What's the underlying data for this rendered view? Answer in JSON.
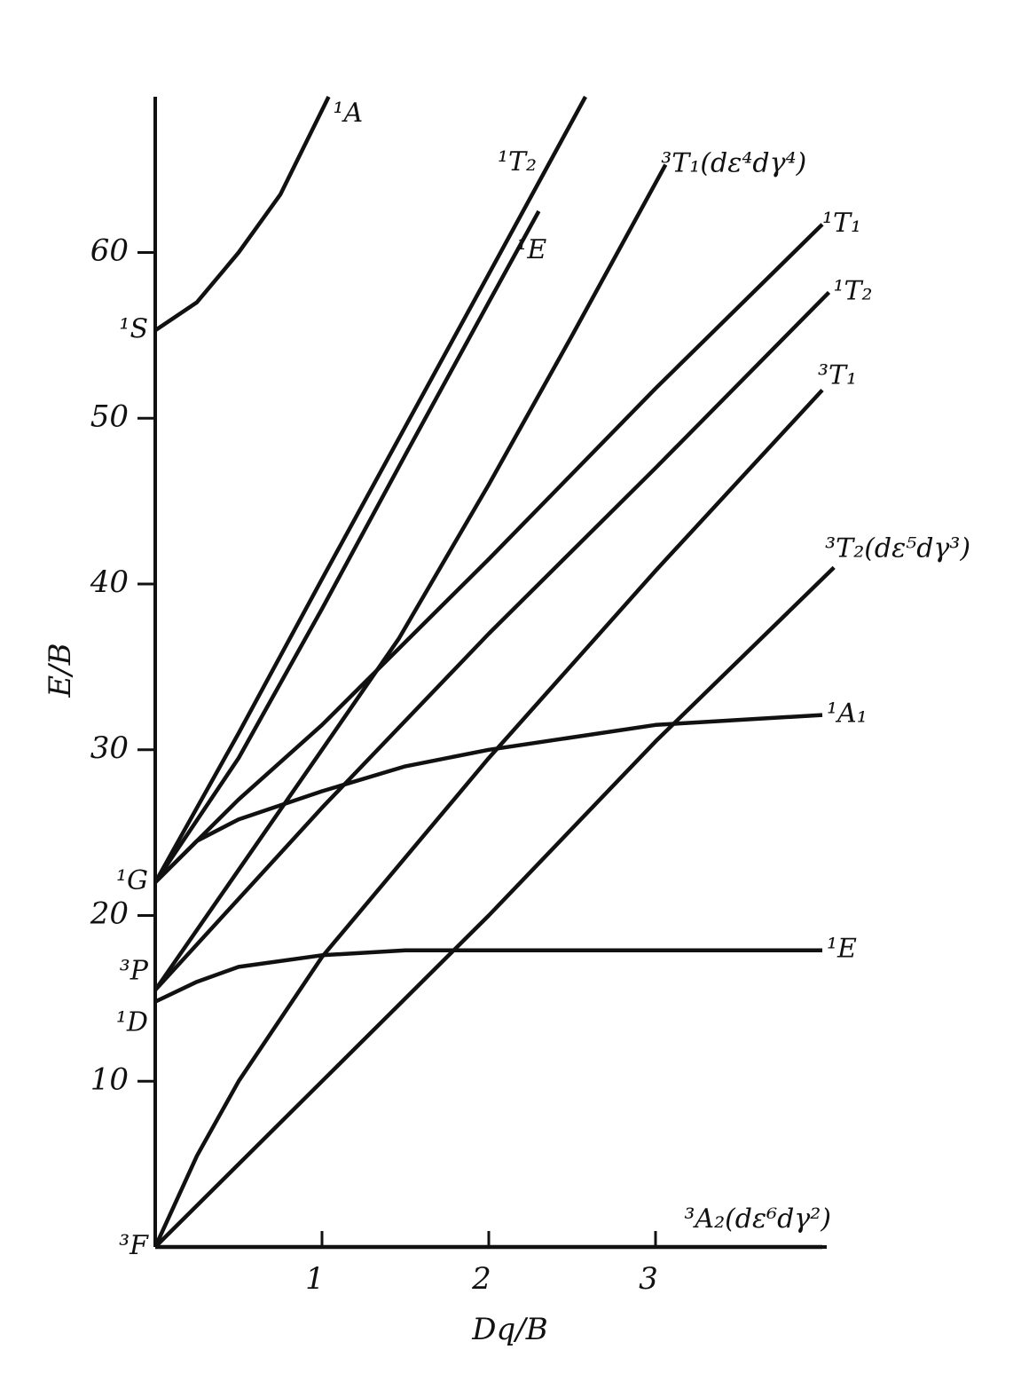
{
  "chart_data": {
    "type": "line",
    "x_label": "Dq/B",
    "y_label": "E/B",
    "xlim": [
      0,
      4
    ],
    "ylim": [
      0,
      69.4
    ],
    "xticks": [
      1,
      2,
      3
    ],
    "yticks": [
      10,
      20,
      30,
      40,
      50,
      60
    ],
    "color": "#111111",
    "terms": [
      {
        "label": "¹S",
        "value": 55.3
      },
      {
        "label": "¹G",
        "value": 22
      },
      {
        "label": "³P",
        "value": 15.5
      },
      {
        "label": "¹D",
        "value": 14.8
      },
      {
        "label": "³F",
        "value": 0
      }
    ],
    "series": [
      {
        "name": "¹A",
        "x": [
          0,
          0.25,
          0.5,
          0.75,
          1.04
        ],
        "values": [
          55.3,
          57,
          60,
          63.5,
          69.4
        ]
      },
      {
        "name": "¹T₂",
        "x": [
          0,
          0.5,
          1,
          1.5,
          2,
          2.58
        ],
        "values": [
          22,
          31,
          40.3,
          49.5,
          58.7,
          69.4
        ]
      },
      {
        "name": "¹E",
        "x": [
          0,
          0.5,
          1,
          1.5,
          2,
          2.3
        ],
        "values": [
          22,
          29.5,
          38.5,
          47.8,
          57,
          62.5
        ]
      },
      {
        "name": "³T₁(dε⁴dγ⁴)",
        "x": [
          0,
          1,
          1.46,
          2,
          2.5,
          3.06
        ],
        "values": [
          15.5,
          30,
          36.7,
          46,
          55,
          65.3
        ]
      },
      {
        "name": "¹T₁",
        "x": [
          0,
          0.5,
          1,
          2,
          3,
          4
        ],
        "values": [
          22,
          27,
          31.5,
          41.5,
          51.8,
          61.7
        ]
      },
      {
        "name": "¹T₂",
        "x": [
          0,
          1,
          2,
          3,
          4.04
        ],
        "values": [
          15.5,
          26.5,
          37,
          47,
          57.6
        ]
      },
      {
        "name": "³T₁",
        "x": [
          0,
          0.25,
          0.5,
          1,
          2,
          3,
          4
        ],
        "values": [
          0,
          5.5,
          10,
          17.5,
          29.5,
          40.8,
          51.7
        ]
      },
      {
        "name": "³T₂(dε⁵dγ³)",
        "x": [
          0,
          1,
          2,
          3,
          4.07
        ],
        "values": [
          0,
          10,
          20,
          30.5,
          41
        ]
      },
      {
        "name": "¹A₁",
        "x": [
          0,
          0.25,
          0.5,
          1,
          1.5,
          2,
          3,
          4
        ],
        "values": [
          22,
          24.5,
          25.8,
          27.5,
          29,
          30,
          31.5,
          32.1
        ]
      },
      {
        "name": "¹E",
        "x": [
          0,
          0.25,
          0.5,
          1,
          1.5,
          4
        ],
        "values": [
          14.8,
          16,
          16.9,
          17.6,
          17.9,
          17.9
        ]
      },
      {
        "name": "³A₂(dε⁶dγ²)",
        "x": [
          0,
          4
        ],
        "values": [
          0,
          0
        ]
      }
    ]
  }
}
